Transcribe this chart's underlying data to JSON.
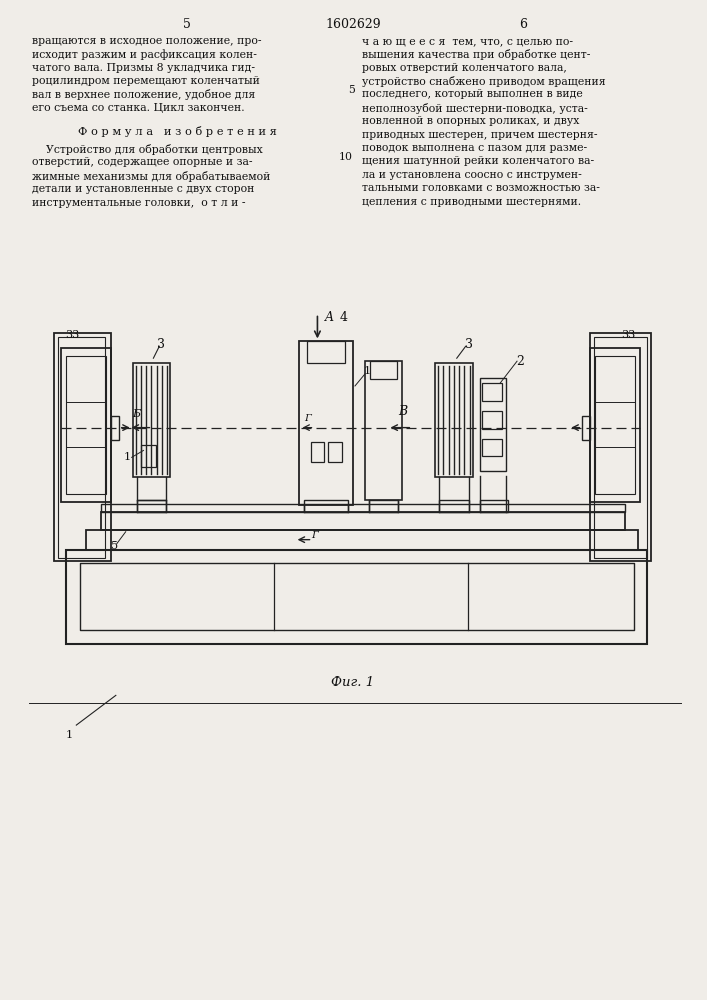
{
  "page_number_left": "5",
  "page_number_center": "1602629",
  "page_number_right": "6",
  "left_col_text": [
    "вращаются в исходное положение, про-",
    "исходит разжим и расфиксация колен-",
    "чатого вала. Призмы 8 укладчика гид-",
    "роцилиндром перемещают коленчатый",
    "вал в верхнее положение, удобное для",
    "его съема со станка. Цикл закончен."
  ],
  "formula_title": "Ф о р м у л а   и з о б р е т е н и я",
  "formula_text": [
    "    Устройство для обработки центровых",
    "отверстий, содержащее опорные и за-",
    "жимные механизмы для обрабатываемой",
    "детали и установленные с двух сторон",
    "инструментальные головки,  о т л и -"
  ],
  "right_col_text": [
    "ч а ю щ е е с я  тем, что, с целью по-",
    "вышения качества при обработке цент-",
    "ровых отверстий коленчатого вала,",
    "устройство снабжено приводом вращения",
    "последнего, который выполнен в виде",
    "неполнозубой шестерни-поводка, уста-",
    "новленной в опорных роликах, и двух",
    "приводных шестерен, причем шестерня-",
    "поводок выполнена с пазом для разме-",
    "щения шатунной рейки коленчатого ва-",
    "ла и установлена соосно с инструмен-",
    "тальными головками с возможностью за-",
    "цепления с приводными шестернями."
  ],
  "fig_caption": "Фиг. 1",
  "bg_color": "#f0ede8",
  "line_color": "#222222",
  "text_color": "#111111"
}
